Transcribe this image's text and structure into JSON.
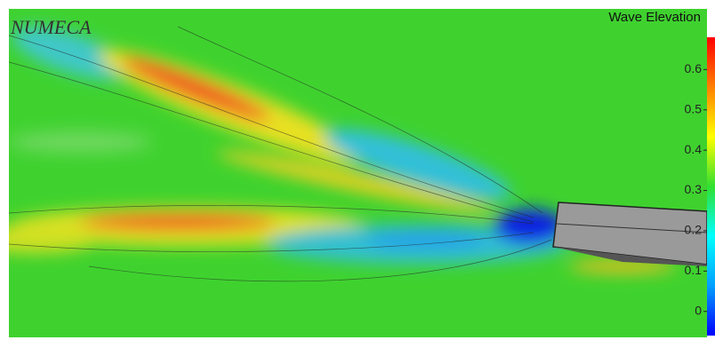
{
  "watermark": "NUMECA",
  "colorbar": {
    "title": "Wave Elevation",
    "lim": [
      -0.06,
      0.68
    ],
    "ticks": [
      0,
      0.1,
      0.2,
      0.3,
      0.4,
      0.5,
      0.6
    ],
    "colors": [
      "#0000ff",
      "#00a0ff",
      "#00ffff",
      "#30e030",
      "#ffff00",
      "#ff8000",
      "#ff0000"
    ]
  }
}
